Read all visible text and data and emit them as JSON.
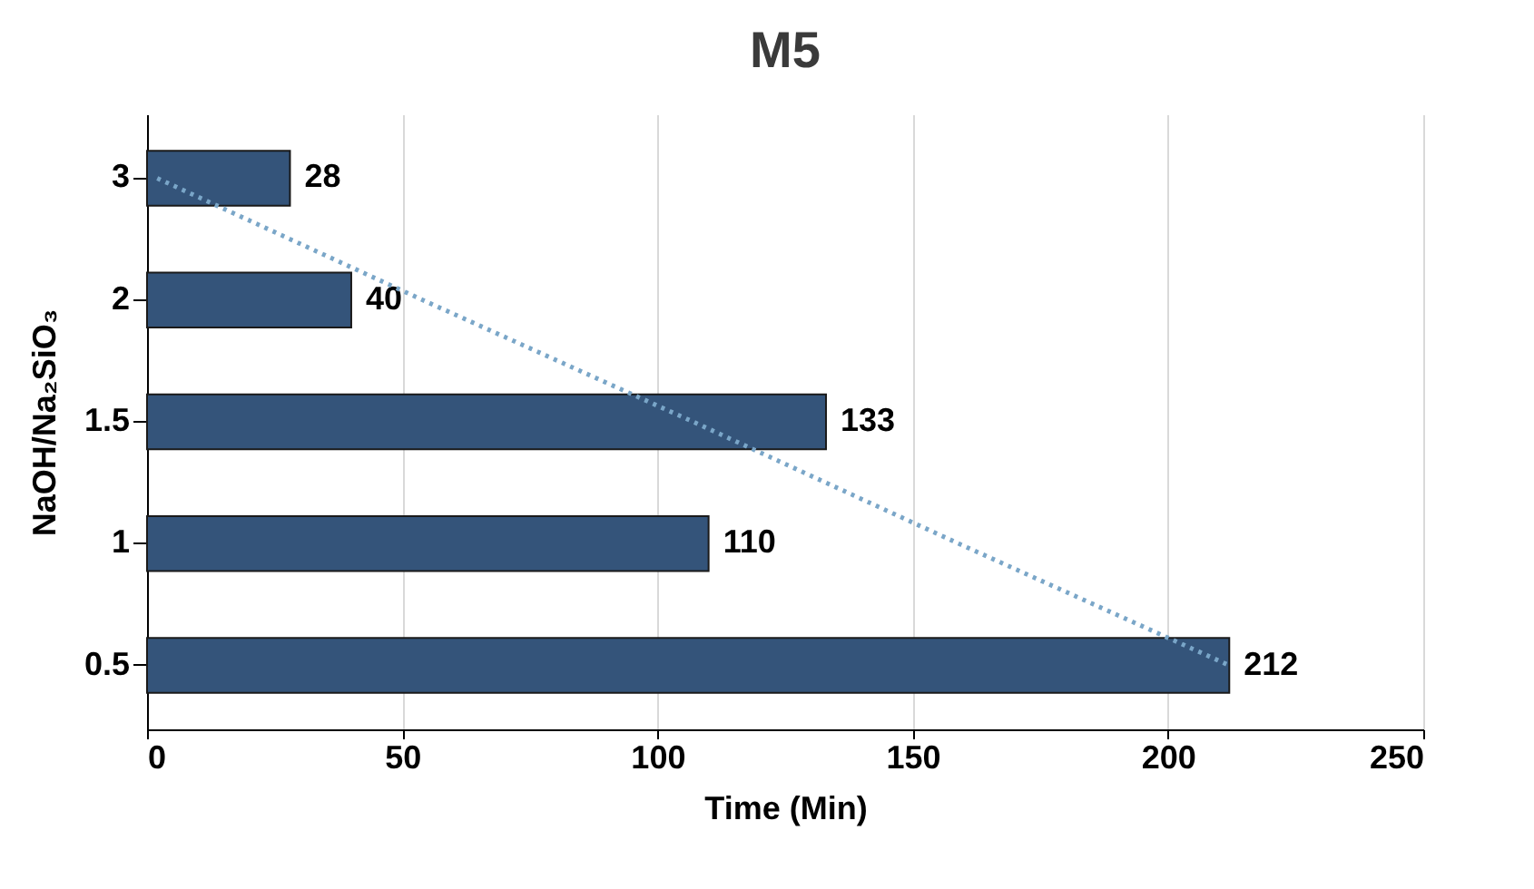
{
  "chart_data": {
    "type": "bar",
    "orientation": "horizontal",
    "title": "M5",
    "xlabel": "Time (Min)",
    "ylabel": "NaOH/Na₂SiO₃",
    "categories": [
      "3",
      "2",
      "1.5",
      "1",
      "0.5"
    ],
    "series": [
      {
        "color": "#34547a",
        "values": [
          28,
          40,
          133,
          110,
          212
        ],
        "value_labels": [
          "28",
          "40",
          "133",
          "110",
          "212"
        ]
      },
      {
        "type": "line",
        "color": "#7aa6c8",
        "line_style": "dotted",
        "values": [
          2,
          54,
          107,
          159,
          212
        ]
      }
    ],
    "xlim": [
      0,
      250
    ],
    "xticks": [
      0,
      50,
      100,
      150,
      200,
      250
    ],
    "grid": "x"
  }
}
